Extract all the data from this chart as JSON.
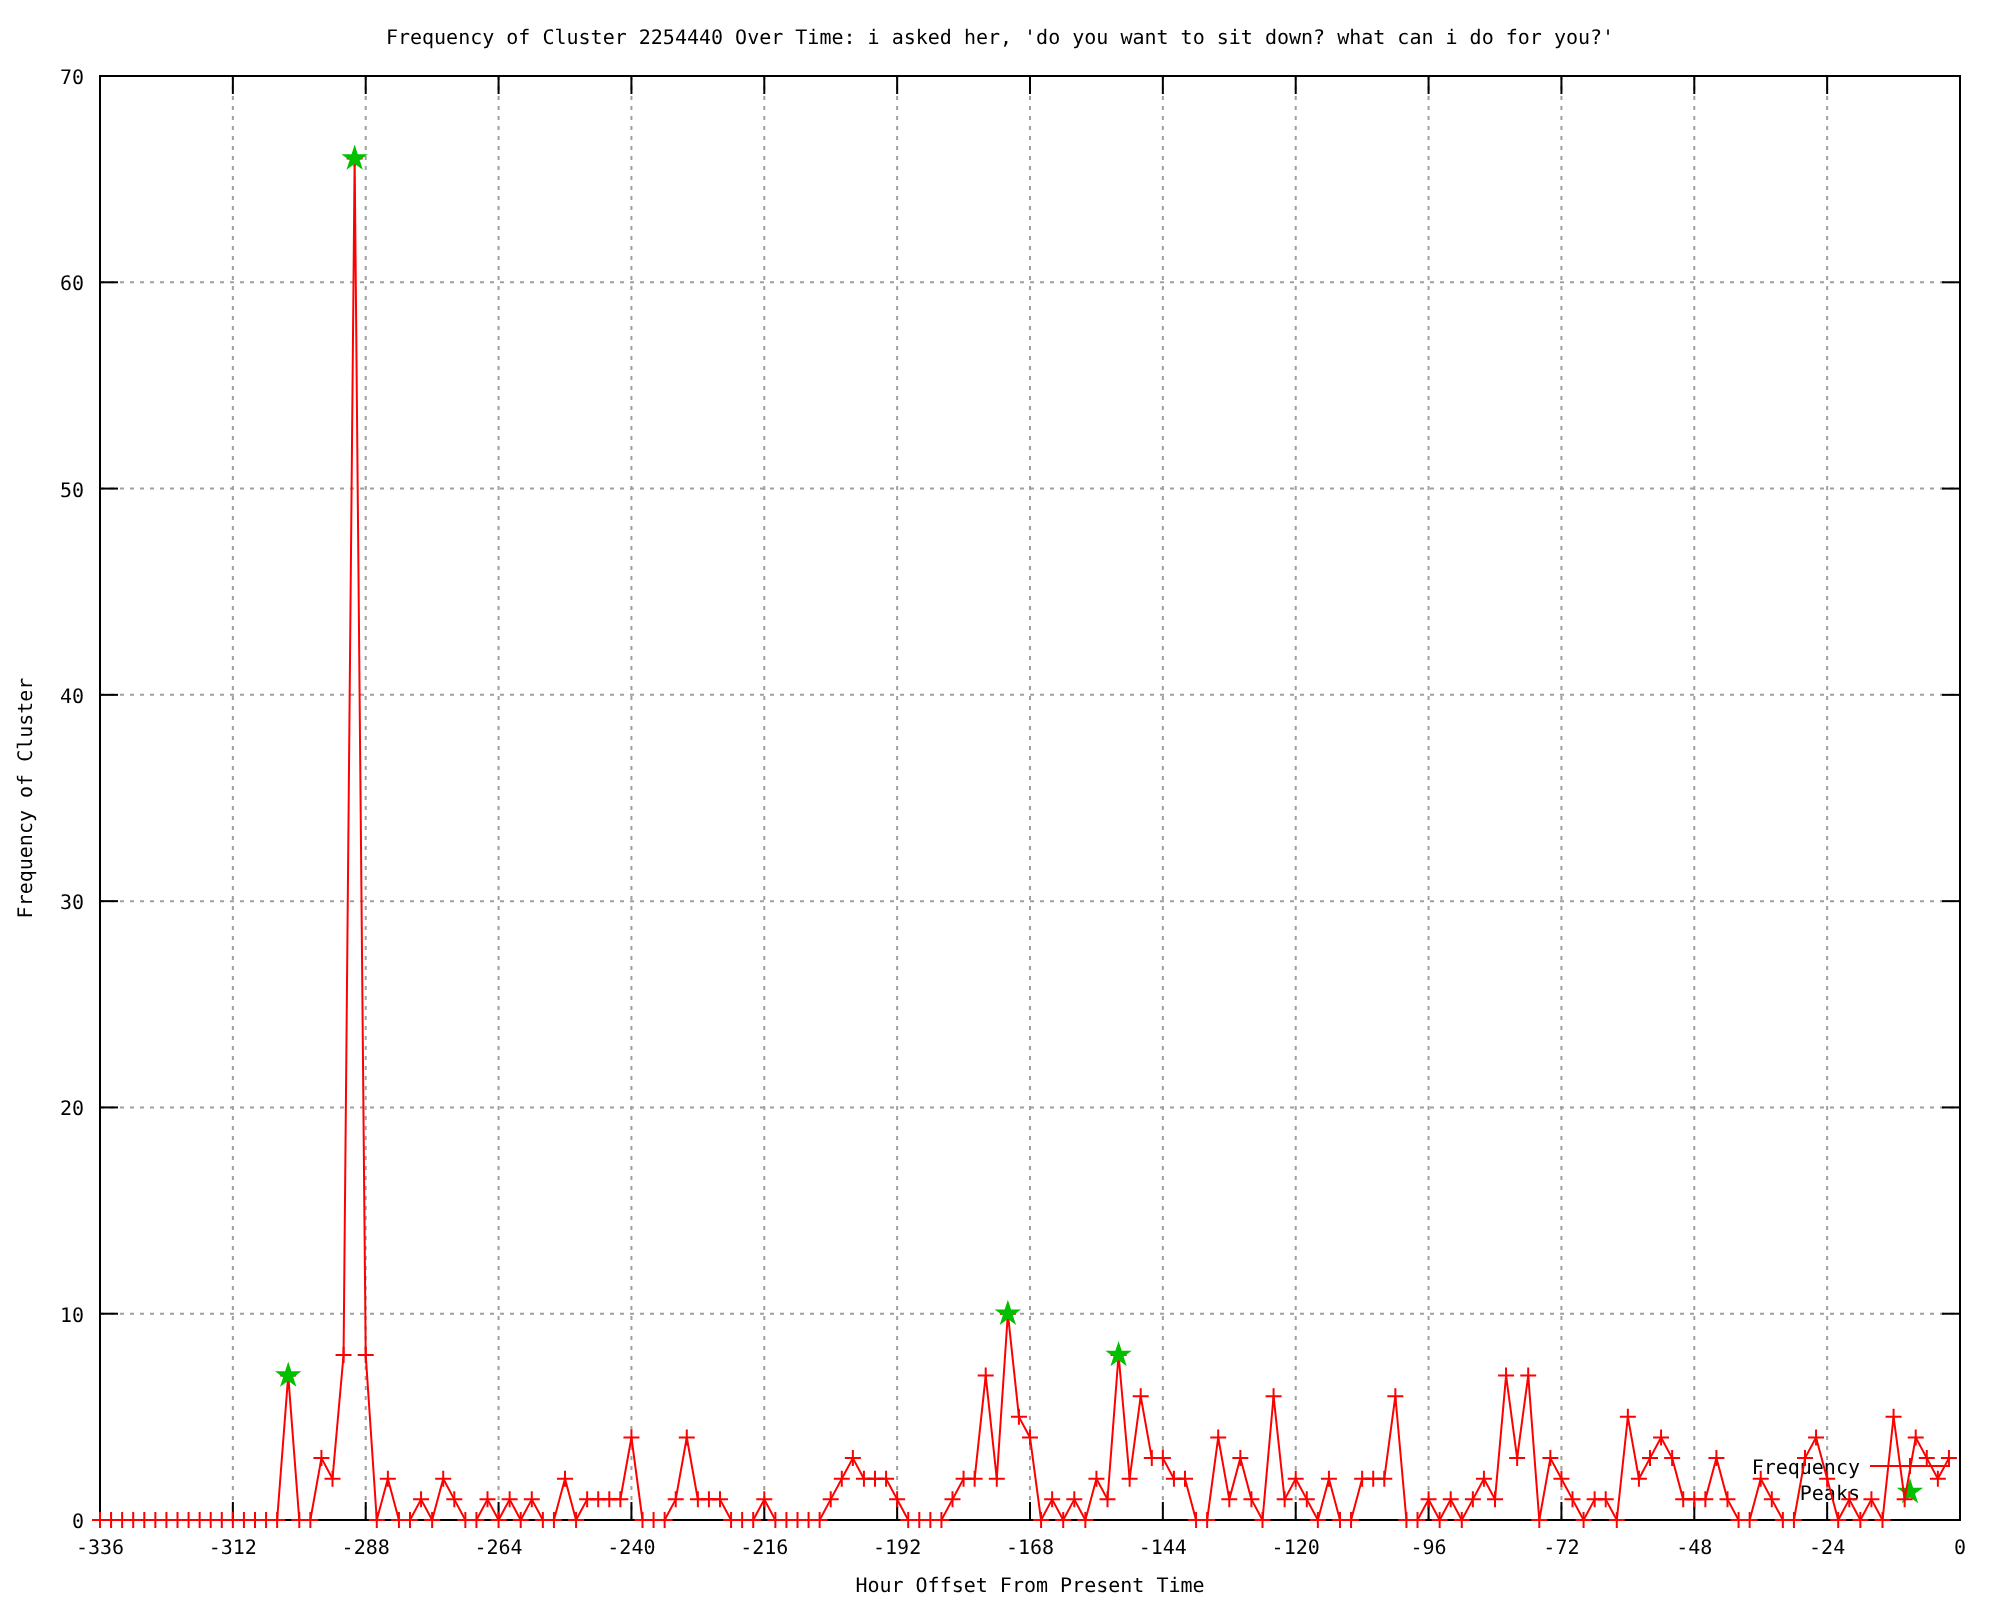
{
  "chart_data": {
    "type": "line",
    "title": "Frequency of Cluster 2254440 Over Time: i asked her, 'do you want to sit down? what can i do for you?'",
    "xlabel": "Hour Offset From Present Time",
    "ylabel": "Frequency of Cluster",
    "x": [
      -336,
      -334,
      -332,
      -330,
      -328,
      -326,
      -324,
      -322,
      -320,
      -318,
      -316,
      -314,
      -312,
      -310,
      -308,
      -306,
      -304,
      -302,
      -300,
      -298,
      -296,
      -294,
      -292,
      -290,
      -288,
      -286,
      -284,
      -282,
      -280,
      -278,
      -276,
      -274,
      -272,
      -270,
      -268,
      -266,
      -264,
      -262,
      -260,
      -258,
      -256,
      -254,
      -252,
      -250,
      -248,
      -246,
      -244,
      -242,
      -240,
      -238,
      -236,
      -234,
      -232,
      -230,
      -228,
      -226,
      -224,
      -222,
      -220,
      -218,
      -216,
      -214,
      -212,
      -210,
      -208,
      -206,
      -204,
      -202,
      -200,
      -198,
      -196,
      -194,
      -192,
      -190,
      -188,
      -186,
      -184,
      -182,
      -180,
      -178,
      -176,
      -174,
      -172,
      -170,
      -168,
      -166,
      -164,
      -162,
      -160,
      -158,
      -156,
      -154,
      -152,
      -150,
      -148,
      -146,
      -144,
      -142,
      -140,
      -138,
      -136,
      -134,
      -132,
      -130,
      -128,
      -126,
      -124,
      -122,
      -120,
      -118,
      -116,
      -114,
      -112,
      -110,
      -108,
      -106,
      -104,
      -102,
      -100,
      -98,
      -96,
      -94,
      -92,
      -90,
      -88,
      -86,
      -84,
      -82,
      -80,
      -78,
      -76,
      -74,
      -72,
      -70,
      -68,
      -66,
      -64,
      -62,
      -60,
      -58,
      -56,
      -54,
      -52,
      -50,
      -48,
      -46,
      -44,
      -42,
      -40,
      -38,
      -36,
      -34,
      -32,
      -30,
      -28,
      -26,
      -24,
      -22,
      -20,
      -18,
      -16,
      -14,
      -12,
      -10,
      -8,
      -6,
      -4,
      -2
    ],
    "series": [
      {
        "name": "Frequency",
        "color": "#ff0000",
        "marker": "cross",
        "values": [
          0,
          0,
          0,
          0,
          0,
          0,
          0,
          0,
          0,
          0,
          0,
          0,
          0,
          0,
          0,
          0,
          0,
          7,
          0,
          0,
          3,
          2,
          8,
          66,
          8,
          0,
          2,
          0,
          0,
          1,
          0,
          2,
          1,
          0,
          0,
          1,
          0,
          1,
          0,
          1,
          0,
          0,
          2,
          0,
          1,
          1,
          1,
          1,
          4,
          0,
          0,
          0,
          1,
          4,
          1,
          1,
          1,
          0,
          0,
          0,
          1,
          0,
          0,
          0,
          0,
          0,
          1,
          2,
          3,
          2,
          2,
          2,
          1,
          0,
          0,
          0,
          0,
          1,
          2,
          2,
          7,
          2,
          10,
          5,
          4,
          0,
          1,
          0,
          1,
          0,
          2,
          1,
          8,
          2,
          6,
          3,
          3,
          2,
          2,
          0,
          0,
          4,
          1,
          3,
          1,
          0,
          6,
          1,
          2,
          1,
          0,
          2,
          0,
          0,
          2,
          2,
          2,
          6,
          0,
          0,
          1,
          0,
          1,
          0,
          1,
          2,
          1,
          7,
          3,
          7,
          0,
          3,
          2,
          1,
          0,
          1,
          1,
          0,
          5,
          2,
          3,
          4,
          3,
          1,
          1,
          1,
          3,
          1,
          0,
          0,
          2,
          1,
          0,
          0,
          3,
          4,
          2,
          0,
          1,
          0,
          1,
          0,
          5,
          1,
          4,
          3,
          2,
          3
        ]
      },
      {
        "name": "Peaks",
        "type": "scatter",
        "color": "#00c000",
        "marker": "star",
        "x": [
          -302,
          -290,
          -172,
          -152
        ],
        "values": [
          7,
          66,
          10,
          8
        ]
      }
    ],
    "xlim": [
      -336,
      0
    ],
    "xticks": [
      -336,
      -312,
      -288,
      -264,
      -240,
      -216,
      -192,
      -168,
      -144,
      -120,
      -96,
      -72,
      -48,
      -24,
      0
    ],
    "ylim": [
      0,
      70
    ],
    "yticks": [
      0,
      10,
      20,
      30,
      40,
      50,
      60,
      70
    ],
    "grid": true,
    "legend": "bottom right"
  }
}
